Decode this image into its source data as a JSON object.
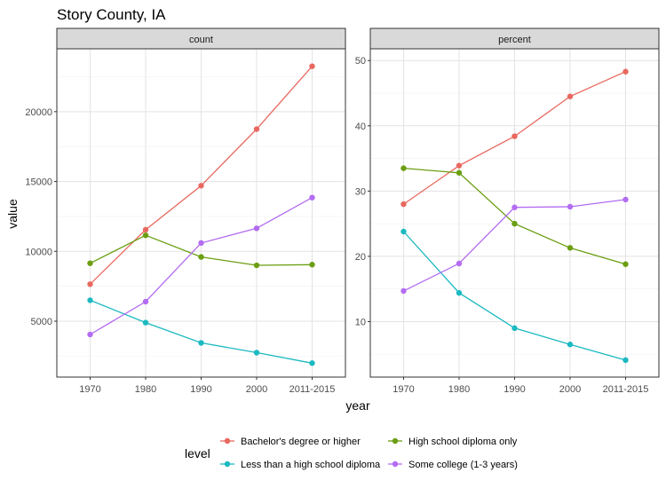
{
  "title": "Story County, IA",
  "xlabel": "year",
  "ylabel": "value",
  "colors": {
    "Bachelor's degree or higher": "#e8685f",
    "High school diploma only": "#6b9e12",
    "Less than a high school diploma": "#1bb9c1",
    "Some college (1-3 years)": "#b36cf2"
  },
  "chart_data": [
    {
      "type": "line",
      "panel": "count",
      "categories": [
        "1970",
        "1980",
        "1990",
        "2000",
        "2011-2015"
      ],
      "yticks": [
        5000,
        10000,
        15000,
        20000
      ],
      "ylim": [
        1000,
        24500
      ],
      "grid": true,
      "series": [
        {
          "name": "Bachelor's degree or higher",
          "values": [
            7650,
            11550,
            14700,
            18750,
            23250
          ]
        },
        {
          "name": "High school diploma only",
          "values": [
            9150,
            11150,
            9600,
            9000,
            9050
          ]
        },
        {
          "name": "Less than a high school diploma",
          "values": [
            6500,
            4900,
            3450,
            2750,
            2000
          ]
        },
        {
          "name": "Some college (1-3 years)",
          "values": [
            4050,
            6400,
            10600,
            11650,
            13850
          ]
        }
      ]
    },
    {
      "type": "line",
      "panel": "percent",
      "categories": [
        "1970",
        "1980",
        "1990",
        "2000",
        "2011-2015"
      ],
      "yticks": [
        10,
        20,
        30,
        40,
        50
      ],
      "ylim": [
        1.5,
        51.8
      ],
      "grid": true,
      "series": [
        {
          "name": "Bachelor's degree or higher",
          "values": [
            28.0,
            33.9,
            38.4,
            44.5,
            48.3
          ]
        },
        {
          "name": "High school diploma only",
          "values": [
            33.5,
            32.8,
            25.0,
            21.3,
            18.8
          ]
        },
        {
          "name": "Less than a high school diploma",
          "values": [
            23.8,
            14.4,
            9.0,
            6.5,
            4.1
          ]
        },
        {
          "name": "Some college (1-3 years)",
          "values": [
            14.7,
            18.9,
            27.5,
            27.6,
            28.7
          ]
        }
      ]
    }
  ],
  "legend": {
    "title": "level",
    "placement": "bottom",
    "entries": [
      "Bachelor's degree or higher",
      "High school diploma only",
      "Less than a high school diploma",
      "Some college (1-3 years)"
    ]
  }
}
